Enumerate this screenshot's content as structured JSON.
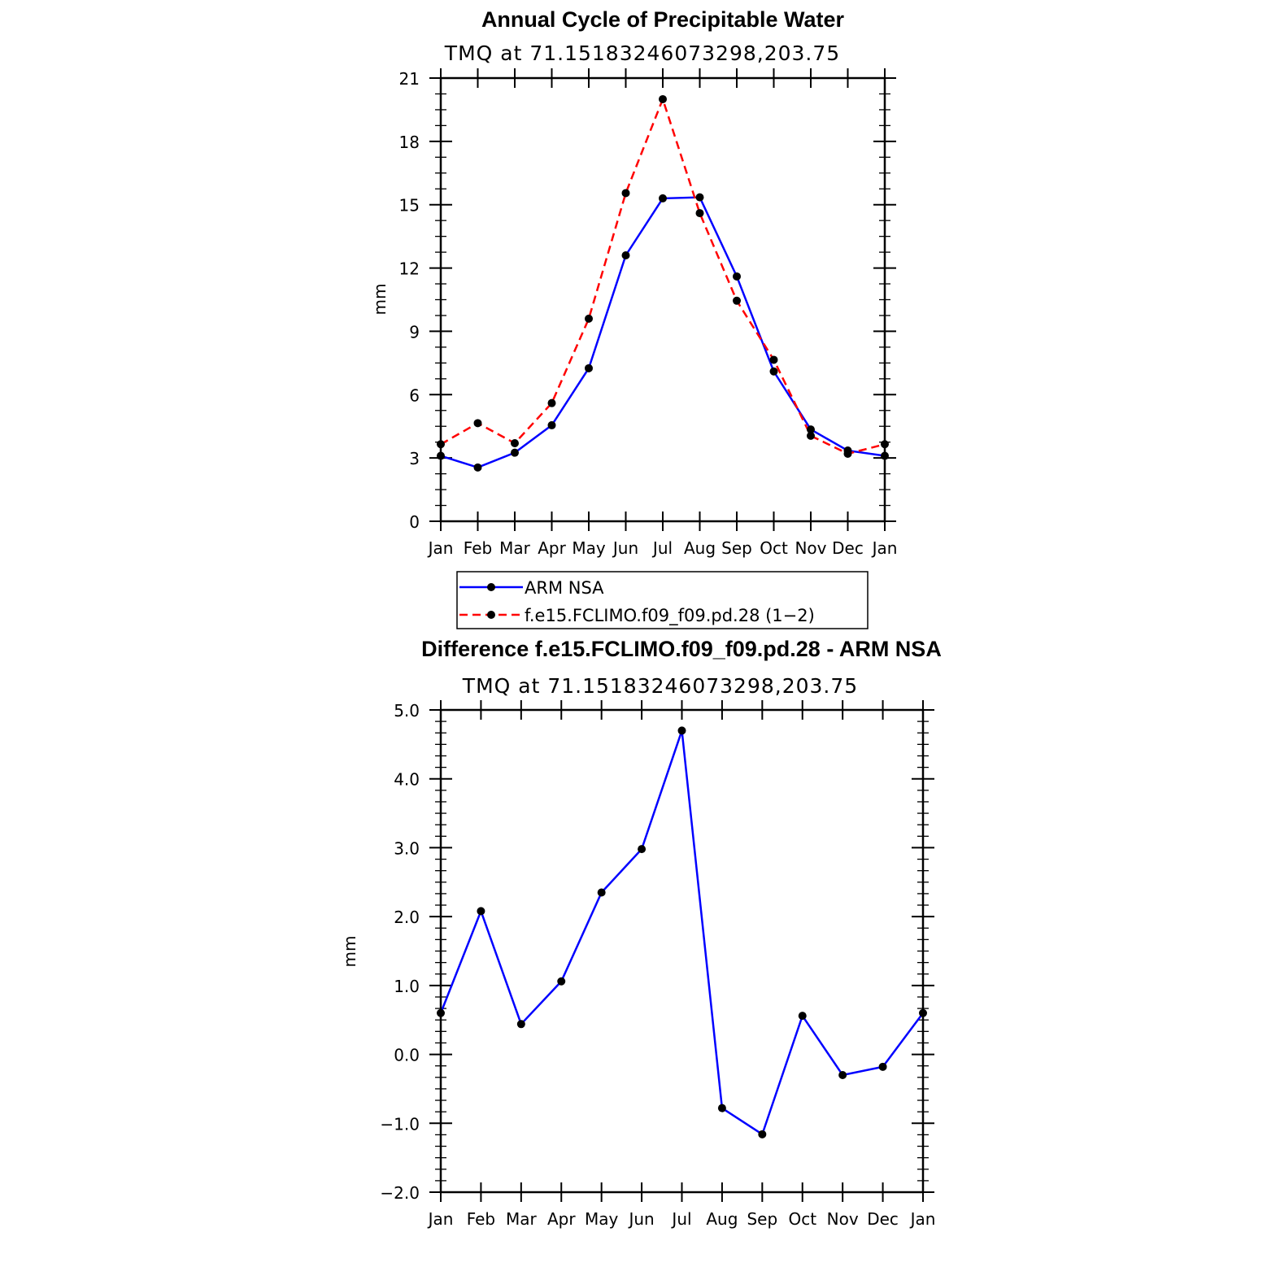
{
  "chart_data": [
    {
      "type": "line",
      "title": "Annual Cycle of Precipitable Water",
      "subtitle": "TMQ at 71.15183246073298,203.75",
      "ylabel": "mm",
      "xlabel": "",
      "categories": [
        "Jan",
        "Feb",
        "Mar",
        "Apr",
        "May",
        "Jun",
        "Jul",
        "Aug",
        "Sep",
        "Oct",
        "Nov",
        "Dec",
        "Jan"
      ],
      "ylim": [
        0,
        21
      ],
      "yticks": [
        "0",
        "3",
        "6",
        "9",
        "12",
        "15",
        "18",
        "21"
      ],
      "series": [
        {
          "name": "ARM NSA",
          "color": "#0000ff",
          "dash": "solid",
          "values": [
            3.1,
            2.55,
            3.25,
            4.55,
            7.25,
            12.6,
            15.3,
            15.35,
            11.6,
            7.1,
            4.35,
            3.35,
            3.1
          ]
        },
        {
          "name": "f.e15.FCLIMO.f09_f09.pd.28 (1−2)",
          "color": "#ff0000",
          "dash": "dashed",
          "values": [
            3.65,
            4.65,
            3.7,
            5.6,
            9.6,
            15.55,
            20.0,
            14.6,
            10.45,
            7.65,
            4.05,
            3.2,
            3.65
          ]
        }
      ],
      "legend": [
        "ARM NSA",
        "f.e15.FCLIMO.f09_f09.pd.28 (1−2)"
      ]
    },
    {
      "type": "line",
      "title": "Difference f.e15.FCLIMO.f09_f09.pd.28 - ARM NSA",
      "subtitle": "TMQ at 71.15183246073298,203.75",
      "ylabel": "mm",
      "xlabel": "",
      "categories": [
        "Jan",
        "Feb",
        "Mar",
        "Apr",
        "May",
        "Jun",
        "Jul",
        "Aug",
        "Sep",
        "Oct",
        "Nov",
        "Dec",
        "Jan"
      ],
      "ylim": [
        -2.0,
        5.0
      ],
      "yticks": [
        "−2.0",
        "−1.0",
        "0.0",
        "1.0",
        "2.0",
        "3.0",
        "4.0",
        "5.0"
      ],
      "series": [
        {
          "name": "Difference",
          "color": "#0000ff",
          "dash": "solid",
          "values": [
            0.6,
            2.08,
            0.44,
            1.06,
            2.35,
            2.98,
            4.7,
            -0.78,
            -1.16,
            0.56,
            -0.3,
            -0.18,
            0.6
          ]
        }
      ]
    }
  ]
}
